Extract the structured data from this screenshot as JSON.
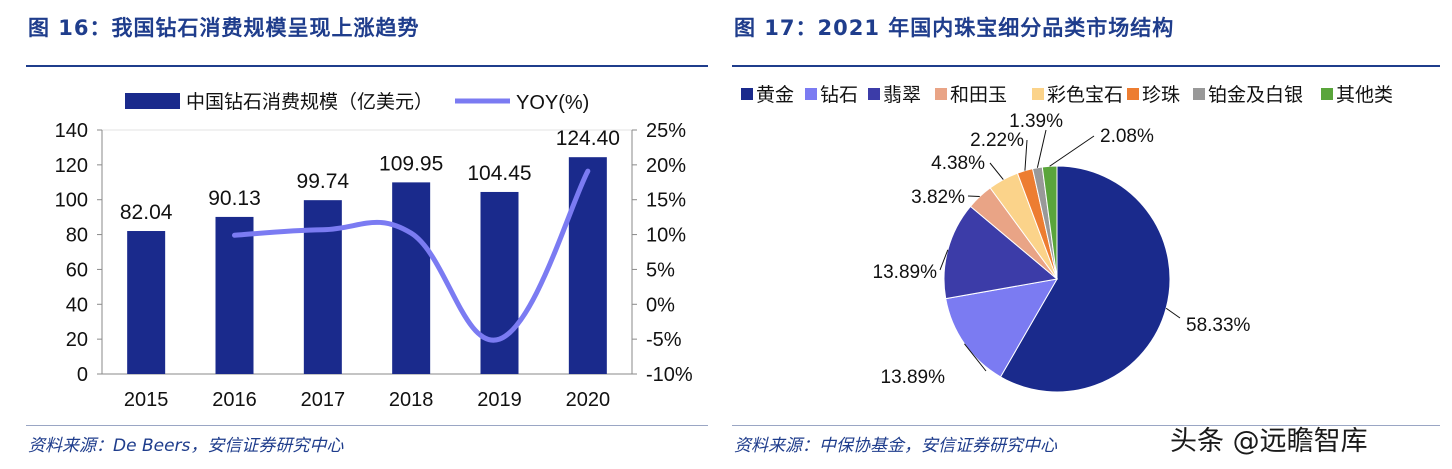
{
  "left_panel": {
    "title": "图 16：我国钻石消费规模呈现上涨趋势",
    "source": "资料来源：De Beers，安信证券研究中心"
  },
  "right_panel": {
    "title": "图 17：2021 年国内珠宝细分品类市场结构",
    "source": "资料来源：中保协基金，安信证券研究中心"
  },
  "watermark": "头条 @远瞻智库",
  "chart_data": [
    {
      "type": "bar",
      "categories": [
        "2015",
        "2016",
        "2017",
        "2018",
        "2019",
        "2020"
      ],
      "series": [
        {
          "name": "中国钻石消费规模（亿美元）",
          "type": "bar",
          "axis": "left",
          "values": [
            82.04,
            90.13,
            99.74,
            109.95,
            104.45,
            124.4
          ],
          "labels": [
            "82.04",
            "90.13",
            "99.74",
            "109.95",
            "104.45",
            "124.40"
          ]
        },
        {
          "name": "YOY(%)",
          "type": "line",
          "axis": "right",
          "values": [
            null,
            9.9,
            10.7,
            10.2,
            -5.0,
            19.1
          ]
        }
      ],
      "y_left": {
        "lim": [
          0,
          140
        ],
        "ticks": [
          "0",
          "20",
          "40",
          "60",
          "80",
          "100",
          "120",
          "140"
        ]
      },
      "y_right": {
        "lim": [
          -10,
          25
        ],
        "ticks": [
          "-10%",
          "-5%",
          "0%",
          "5%",
          "10%",
          "15%",
          "20%",
          "25%"
        ]
      },
      "grid": false,
      "legend": "top",
      "colors": {
        "bar": "#1a2a8c",
        "line": "#7b7bf2"
      }
    },
    {
      "type": "pie",
      "categories": [
        "黄金",
        "钻石",
        "翡翠",
        "和田玉",
        "彩色宝石",
        "珍珠",
        "铂金及白银",
        "其他类"
      ],
      "values": [
        58.33,
        13.89,
        13.89,
        3.82,
        4.38,
        2.22,
        1.39,
        2.08
      ],
      "labels": [
        "58.33%",
        "13.89%",
        "13.89%",
        "3.82%",
        "4.38%",
        "2.22%",
        "1.39%",
        "2.08%"
      ],
      "colors": [
        "#1a2a8c",
        "#7b7bf2",
        "#3c3ca8",
        "#e9a486",
        "#fbd38a",
        "#ed7d31",
        "#999999",
        "#5aa53b"
      ],
      "legend": "top"
    }
  ]
}
